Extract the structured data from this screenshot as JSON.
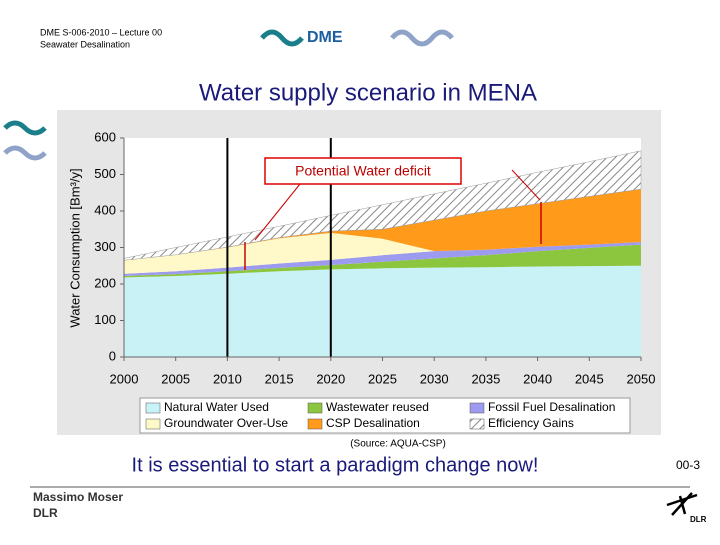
{
  "header": {
    "lines": [
      "DME S-006-2010 – Lecture 00",
      "Seawater Desalination"
    ],
    "logo": "DME"
  },
  "title": "Water supply scenario in MENA",
  "chart_data": {
    "type": "stacked_area",
    "ylabel": "Water Consumption [Bm³/y]",
    "x": [
      2000,
      2005,
      2010,
      2015,
      2020,
      2025,
      2030,
      2035,
      2040,
      2045,
      2050
    ],
    "xlim": [
      2000,
      2050
    ],
    "xticks": [
      2000,
      2005,
      2010,
      2015,
      2020,
      2025,
      2030,
      2035,
      2040,
      2045,
      2050
    ],
    "ylim": [
      0,
      600
    ],
    "yticks": [
      0,
      100,
      200,
      300,
      400,
      500,
      600
    ],
    "grid": false,
    "reference_lines_x": [
      2010,
      2020
    ],
    "series": [
      {
        "name": "Natural Water Used",
        "color": "#c8f2f6",
        "values": [
          218,
          222,
          228,
          235,
          240,
          243,
          245,
          246,
          248,
          249,
          250
        ]
      },
      {
        "name": "Wastewater reused",
        "color": "#8cc63f",
        "values": [
          4,
          5,
          7,
          9,
          12,
          18,
          25,
          33,
          42,
          50,
          58
        ]
      },
      {
        "name": "Fossil Fuel Desalination",
        "color": "#9d9bef",
        "values": [
          6,
          8,
          10,
          12,
          14,
          18,
          20,
          15,
          12,
          9,
          7
        ]
      },
      {
        "name": "Groundwater Over-Use",
        "color": "#fff8c8",
        "values": [
          37,
          45,
          55,
          69,
          74,
          45,
          0,
          0,
          0,
          0,
          0
        ]
      },
      {
        "name": "CSP Desalination",
        "color": "#ff9a1a",
        "values": [
          0,
          0,
          1,
          2,
          5,
          26,
          85,
          106,
          118,
          132,
          145
        ]
      },
      {
        "name": "Efficiency Gains",
        "color": "#9a9a9a",
        "hatch": true,
        "values": [
          5,
          20,
          28,
          31,
          43,
          67,
          72,
          76,
          86,
          95,
          105
        ]
      }
    ],
    "annotations": [
      "Potential Water deficit",
      "(Source: AQUA-CSP)"
    ]
  },
  "slogan": "It is essential to start a paradigm change now!",
  "page_number": "00-3",
  "footer": {
    "author": "Massimo Moser",
    "org": "DLR",
    "logo": "DLR"
  }
}
